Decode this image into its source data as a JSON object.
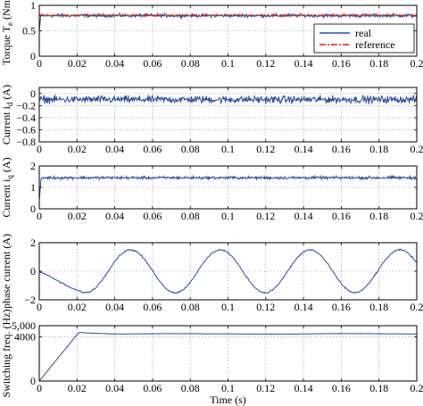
{
  "colors": {
    "real": "#2b4fa3",
    "reference": "#d62020",
    "axis": "#000000",
    "grid": "#999999",
    "background": "#ffffff"
  },
  "chart_data": [
    {
      "id": "torque",
      "type": "line",
      "ylabel_main": "Torque T",
      "ylabel_sub": "e",
      "ylabel_unit": " (Nm)",
      "xlim": [
        0,
        0.2
      ],
      "ylim": [
        0,
        1
      ],
      "x_ticks": [
        0,
        0.02,
        0.04,
        0.06,
        0.08,
        0.1,
        0.12,
        0.14,
        0.16,
        0.18,
        0.2
      ],
      "x_tick_labels": [
        "0",
        "0.02",
        "0.04",
        "0.06",
        "0.08",
        "0.1",
        "0.12",
        "0.14",
        "0.16",
        "0.18",
        "0.2"
      ],
      "y_ticks": [
        0,
        0.5,
        1
      ],
      "y_tick_labels": [
        "0",
        "0.5",
        "1"
      ],
      "grid": true,
      "legend": {
        "position": "top-right",
        "entries": [
          {
            "label": "real",
            "color": "#2b4fa3",
            "dash": "solid"
          },
          {
            "label": "reference",
            "color": "#d62020",
            "dash": "dashdot"
          }
        ]
      },
      "series": [
        {
          "name": "real",
          "color": "#2b4fa3",
          "style": "noisy",
          "level": 0.8,
          "noise_amplitude": 0.05,
          "start_value": 0.5,
          "rise_end": 0.0008
        },
        {
          "name": "reference",
          "color": "#d62020",
          "style": "constant",
          "level": 0.8,
          "dash": "dashdot"
        }
      ]
    },
    {
      "id": "id-current",
      "type": "line",
      "ylabel_main": "Current i",
      "ylabel_sub": "d",
      "ylabel_unit": " (A)",
      "xlim": [
        0,
        0.2
      ],
      "ylim": [
        -0.8,
        0.1
      ],
      "x_ticks": [
        0,
        0.02,
        0.04,
        0.06,
        0.08,
        0.1,
        0.12,
        0.14,
        0.16,
        0.18,
        0.2
      ],
      "x_tick_labels": [
        "0",
        "0.02",
        "0.04",
        "0.06",
        "0.08",
        "0.1",
        "0.12",
        "0.14",
        "0.16",
        "0.18",
        "0.2"
      ],
      "y_ticks": [
        0,
        -0.2,
        -0.4,
        -0.6,
        -0.8
      ],
      "y_tick_labels": [
        "0",
        "−0.2",
        "−0.4",
        "−0.6",
        "−0.8"
      ],
      "grid": true,
      "series": [
        {
          "color": "#2b4fa3",
          "style": "noisy",
          "level": -0.1,
          "noise_amplitude": 0.09,
          "start_value": -0.1,
          "rise_end": 0
        }
      ]
    },
    {
      "id": "iq-current",
      "type": "line",
      "ylabel_main": "Current i",
      "ylabel_sub": "q",
      "ylabel_unit": " (A)",
      "xlim": [
        0,
        0.2
      ],
      "ylim": [
        0,
        2
      ],
      "x_ticks": [
        0,
        0.02,
        0.04,
        0.06,
        0.08,
        0.1,
        0.12,
        0.14,
        0.16,
        0.18,
        0.2
      ],
      "x_tick_labels": [
        "0",
        "0.02",
        "0.04",
        "0.06",
        "0.08",
        "0.1",
        "0.12",
        "0.14",
        "0.16",
        "0.18",
        "0.2"
      ],
      "y_ticks": [
        0,
        1,
        2
      ],
      "y_tick_labels": [
        "0",
        "1",
        "2"
      ],
      "grid": true,
      "series": [
        {
          "color": "#2b4fa3",
          "style": "noisy",
          "level": 1.45,
          "noise_amplitude": 0.1,
          "start_value": 0.4,
          "rise_end": 0.001
        }
      ]
    },
    {
      "id": "phase-current",
      "type": "line",
      "ylabel_main": "phase current (A)",
      "ylabel_sub": "",
      "ylabel_unit": "",
      "xlim": [
        0,
        0.2
      ],
      "ylim": [
        -2,
        2
      ],
      "x_ticks": [
        0,
        0.02,
        0.04,
        0.06,
        0.08,
        0.1,
        0.12,
        0.14,
        0.16,
        0.18,
        0.2
      ],
      "x_tick_labels": [
        "0",
        "0.02",
        "0.04",
        "0.06",
        "0.08",
        "0.1",
        "0.12",
        "0.14",
        "0.16",
        "0.18",
        "0.2"
      ],
      "y_ticks": [
        2,
        0,
        -2
      ],
      "y_tick_labels": [
        "2",
        "0",
        "−2"
      ],
      "grid": true,
      "series": [
        {
          "color": "#2b4fa3",
          "style": "sine",
          "amplitude": 1.5,
          "period": 0.0476,
          "trough_time": 0.0245,
          "noise_amplitude": 0.08,
          "points": [
            [
              0,
              0.0
            ],
            [
              0.01,
              -0.5
            ],
            [
              0.0245,
              -1.5
            ],
            [
              0.0495,
              1.5
            ],
            [
              0.0745,
              -1.5
            ],
            [
              0.0995,
              1.5
            ],
            [
              0.1245,
              -1.5
            ],
            [
              0.15,
              1.5
            ],
            [
              0.175,
              -1.5
            ],
            [
              0.2,
              1.4
            ]
          ]
        }
      ]
    },
    {
      "id": "switching",
      "type": "line",
      "ylabel_main": "Switching freq. (Hz)",
      "ylabel_sub": "",
      "ylabel_unit": "",
      "xlabel": "Time (s)",
      "xlim": [
        0,
        0.2
      ],
      "ylim": [
        0,
        5000
      ],
      "x_ticks": [
        0,
        0.02,
        0.04,
        0.06,
        0.08,
        0.1,
        0.12,
        0.14,
        0.16,
        0.18,
        0.2
      ],
      "x_tick_labels": [
        "0",
        "0.02",
        "0.04",
        "0.06",
        "0.08",
        "0.1",
        "0.12",
        "0.14",
        "0.16",
        "0.18",
        "0.2"
      ],
      "y_ticks": [
        0,
        4000,
        5000
      ],
      "y_tick_labels": [
        "0",
        "4000",
        "5,000"
      ],
      "grid": true,
      "series": [
        {
          "color": "#2b4fa3",
          "style": "ramp",
          "points": [
            [
              0,
              0
            ],
            [
              0.021,
              4400
            ],
            [
              0.025,
              4350
            ],
            [
              0.04,
              4250
            ],
            [
              0.07,
              4280
            ],
            [
              0.1,
              4260
            ],
            [
              0.13,
              4240
            ],
            [
              0.16,
              4290
            ],
            [
              0.19,
              4260
            ],
            [
              0.2,
              4250
            ]
          ],
          "noise_amplitude": 25
        }
      ]
    }
  ]
}
